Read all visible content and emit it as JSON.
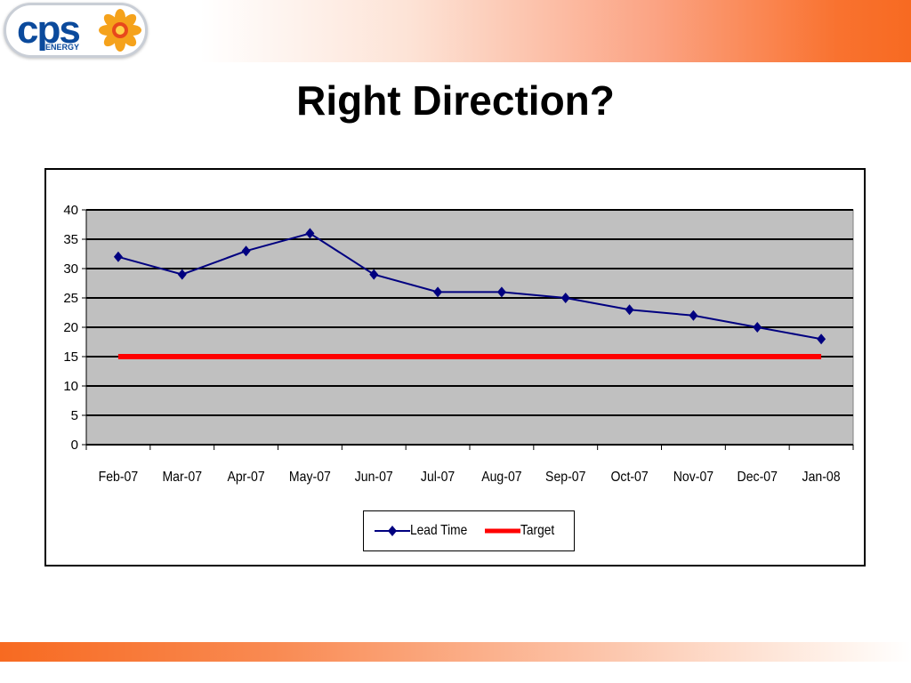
{
  "slide": {
    "title": "Right Direction?",
    "colors": {
      "accent_orange": "#F76A21",
      "plot_area": "#C0C0C0"
    }
  },
  "logo": {
    "name": "cps",
    "subtitle": "ENERGY",
    "icon": "sun-flower-icon"
  },
  "chart_data": {
    "type": "line",
    "categories": [
      "Feb-07",
      "Mar-07",
      "Apr-07",
      "May-07",
      "Jun-07",
      "Jul-07",
      "Aug-07",
      "Sep-07",
      "Oct-07",
      "Nov-07",
      "Dec-07",
      "Jan-08"
    ],
    "series": [
      {
        "name": "Lead Time",
        "values": [
          32,
          29,
          33,
          36,
          29,
          26,
          26,
          25,
          23,
          22,
          20,
          18
        ],
        "color": "#000080",
        "marker": "diamond"
      },
      {
        "name": "Target",
        "values": [
          15,
          15,
          15,
          15,
          15,
          15,
          15,
          15,
          15,
          15,
          15,
          15
        ],
        "color": "#FF0000"
      }
    ],
    "ylim": [
      0,
      40
    ],
    "yticks": [
      0,
      5,
      10,
      15,
      20,
      25,
      30,
      35,
      40
    ],
    "grid": "horizontal",
    "legend_position": "bottom",
    "title": "",
    "xlabel": "",
    "ylabel": ""
  }
}
